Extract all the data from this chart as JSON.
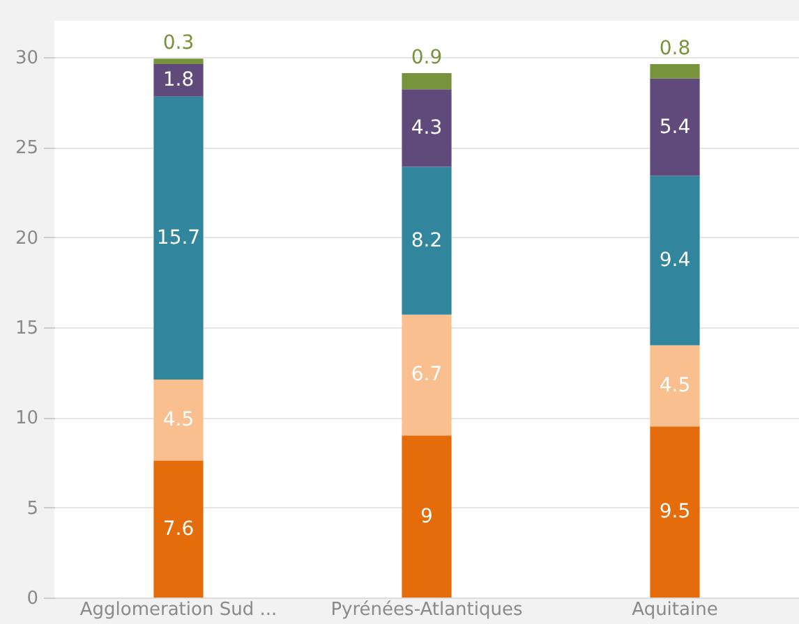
{
  "chart_data": {
    "type": "bar",
    "stacked": true,
    "data_labels": true,
    "grid": "y",
    "legend": false,
    "categories": [
      "Agglomeration Sud ...",
      "Pyrénées-Atlantiques",
      "Aquitaine"
    ],
    "ylim": [
      0,
      32
    ],
    "yticks": [
      0,
      5,
      10,
      15,
      20,
      25,
      30
    ],
    "series": [
      {
        "color": "#e46c0a",
        "values": [
          7.6,
          9,
          9.5
        ]
      },
      {
        "color": "#f9bf8f",
        "values": [
          4.5,
          6.7,
          4.5
        ]
      },
      {
        "color": "#31859c",
        "values": [
          15.7,
          8.2,
          9.4
        ]
      },
      {
        "color": "#604a7b",
        "values": [
          1.8,
          4.3,
          5.4
        ]
      },
      {
        "color": "#77933c",
        "values": [
          0.3,
          0.9,
          0.8
        ]
      }
    ]
  }
}
